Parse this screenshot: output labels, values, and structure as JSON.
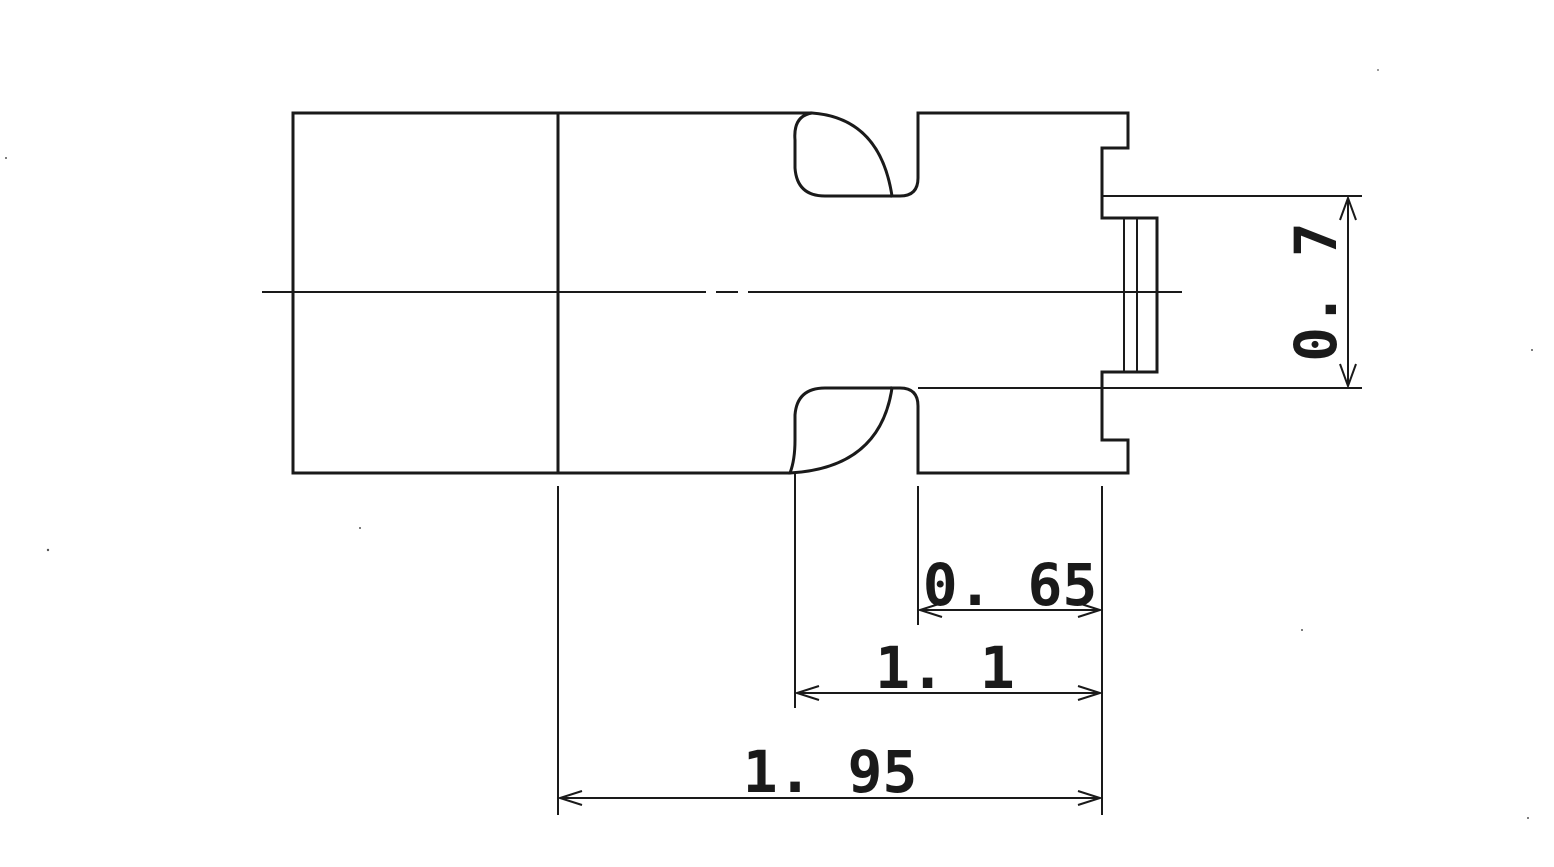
{
  "drawing": {
    "dimensions": {
      "width_0_7": "0. 7",
      "length_0_65": "0. 65",
      "length_1_1": "1. 1",
      "length_1_95": "1. 95"
    },
    "line_color": "#1a1a1a",
    "background": "#ffffff"
  }
}
